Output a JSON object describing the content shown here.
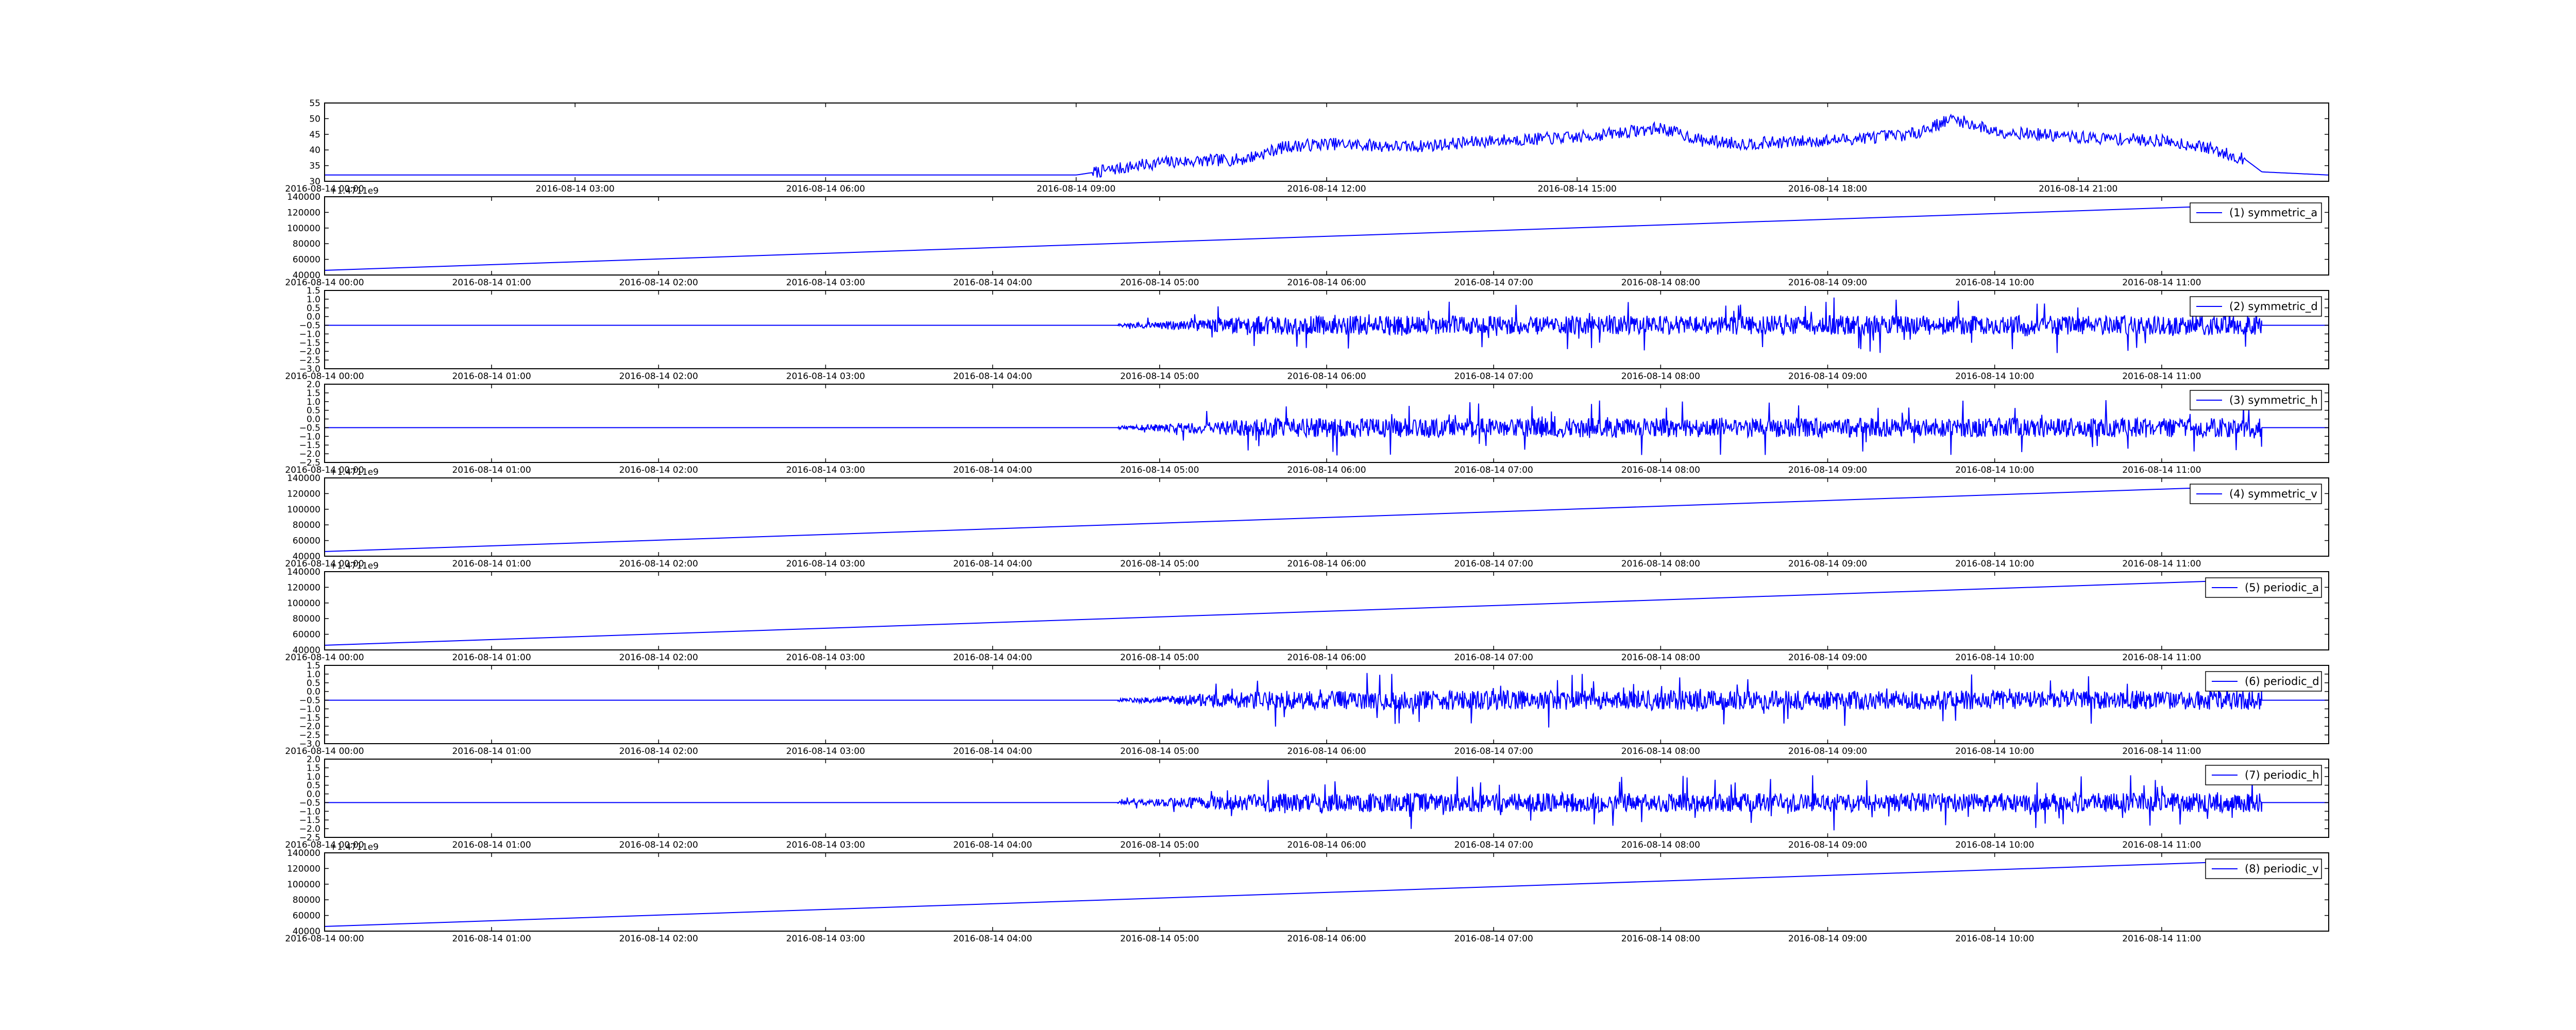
{
  "figure": {
    "background": "#ffffff",
    "line_color": "#0000ff",
    "frame_color": "#000000"
  },
  "chart_data": [
    {
      "type": "line",
      "panel_id": "signal",
      "title": "",
      "legend": null,
      "offset_text": "",
      "ylim": [
        30,
        55
      ],
      "y_ticks": [
        "30",
        "35",
        "40",
        "45",
        "50",
        "55"
      ],
      "x_ticks": [
        "2016-08-14 00:00",
        "2016-08-14 03:00",
        "2016-08-14 06:00",
        "2016-08-14 09:00",
        "2016-08-14 12:00",
        "2016-08-14 15:00",
        "2016-08-14 18:00",
        "2016-08-14 21:00"
      ],
      "x_tick_hours": [
        0,
        3,
        6,
        9,
        12,
        15,
        18,
        21
      ],
      "xlim_hours": [
        0,
        24
      ],
      "x_hours": [
        0,
        9,
        9.5,
        10,
        11,
        11.5,
        12,
        13,
        14,
        15,
        16,
        16.5,
        17,
        18,
        19,
        19.5,
        20,
        21,
        22,
        22.5,
        23,
        23.2,
        24
      ],
      "y": [
        32,
        32,
        34,
        36,
        37,
        41,
        42,
        41,
        43,
        44,
        47,
        43,
        42,
        43,
        45,
        50,
        46,
        44,
        43,
        41,
        37,
        33,
        32
      ],
      "noise_amplitude": 2
    },
    {
      "type": "line",
      "panel_id": "symmetric_a",
      "legend": "(1) symmetric_a",
      "offset_text": "+1.4711e9",
      "ylim": [
        40000,
        140000
      ],
      "y_ticks": [
        "40000",
        "60000",
        "80000",
        "100000",
        "120000",
        "140000"
      ],
      "x_ticks": [
        "2016-08-14 00:00",
        "2016-08-14 01:00",
        "2016-08-14 02:00",
        "2016-08-14 03:00",
        "2016-08-14 04:00",
        "2016-08-14 05:00",
        "2016-08-14 06:00",
        "2016-08-14 07:00",
        "2016-08-14 08:00",
        "2016-08-14 09:00",
        "2016-08-14 10:00",
        "2016-08-14 11:00"
      ],
      "x_tick_hours": [
        0,
        1,
        2,
        3,
        4,
        5,
        6,
        7,
        8,
        9,
        10,
        11
      ],
      "xlim_hours": [
        0,
        12
      ],
      "x_hours": [
        0,
        11.6
      ],
      "y": [
        46000,
        130000
      ]
    },
    {
      "type": "line",
      "panel_id": "symmetric_d",
      "legend": "(2) symmetric_d",
      "offset_text": "",
      "ylim": [
        -3.0,
        1.5
      ],
      "y_ticks": [
        "−3.0",
        "−2.5",
        "−2.0",
        "−1.5",
        "−1.0",
        "−0.5",
        "0.0",
        "0.5",
        "1.0",
        "1.5"
      ],
      "x_ticks": [
        "2016-08-14 00:00",
        "2016-08-14 01:00",
        "2016-08-14 02:00",
        "2016-08-14 03:00",
        "2016-08-14 04:00",
        "2016-08-14 05:00",
        "2016-08-14 06:00",
        "2016-08-14 07:00",
        "2016-08-14 08:00",
        "2016-08-14 09:00",
        "2016-08-14 10:00",
        "2016-08-14 11:00"
      ],
      "x_tick_hours": [
        0,
        1,
        2,
        3,
        4,
        5,
        6,
        7,
        8,
        9,
        10,
        11
      ],
      "xlim_hours": [
        0,
        12
      ],
      "baseline": -0.5,
      "flat_until_hour": 4.75,
      "active_until_hour": 11.6,
      "amplitude": 1.0
    },
    {
      "type": "line",
      "panel_id": "symmetric_h",
      "legend": "(3) symmetric_h",
      "offset_text": "",
      "ylim": [
        -2.5,
        2.0
      ],
      "y_ticks": [
        "−2.5",
        "−2.0",
        "−1.5",
        "−1.0",
        "−0.5",
        "0.0",
        "0.5",
        "1.0",
        "1.5",
        "2.0"
      ],
      "x_ticks": [
        "2016-08-14 00:00",
        "2016-08-14 01:00",
        "2016-08-14 02:00",
        "2016-08-14 03:00",
        "2016-08-14 04:00",
        "2016-08-14 05:00",
        "2016-08-14 06:00",
        "2016-08-14 07:00",
        "2016-08-14 08:00",
        "2016-08-14 09:00",
        "2016-08-14 10:00",
        "2016-08-14 11:00"
      ],
      "x_tick_hours": [
        0,
        1,
        2,
        3,
        4,
        5,
        6,
        7,
        8,
        9,
        10,
        11
      ],
      "xlim_hours": [
        0,
        12
      ],
      "baseline": -0.5,
      "flat_until_hour": 4.75,
      "active_until_hour": 11.6,
      "amplitude": 1.0
    },
    {
      "type": "line",
      "panel_id": "symmetric_v",
      "legend": "(4) symmetric_v",
      "offset_text": "+1.4711e9",
      "ylim": [
        40000,
        140000
      ],
      "y_ticks": [
        "40000",
        "60000",
        "80000",
        "100000",
        "120000",
        "140000"
      ],
      "x_ticks": [
        "2016-08-14 00:00",
        "2016-08-14 01:00",
        "2016-08-14 02:00",
        "2016-08-14 03:00",
        "2016-08-14 04:00",
        "2016-08-14 05:00",
        "2016-08-14 06:00",
        "2016-08-14 07:00",
        "2016-08-14 08:00",
        "2016-08-14 09:00",
        "2016-08-14 10:00",
        "2016-08-14 11:00"
      ],
      "x_tick_hours": [
        0,
        1,
        2,
        3,
        4,
        5,
        6,
        7,
        8,
        9,
        10,
        11
      ],
      "xlim_hours": [
        0,
        12
      ],
      "x_hours": [
        0,
        11.6
      ],
      "y": [
        46000,
        130000
      ]
    },
    {
      "type": "line",
      "panel_id": "periodic_a",
      "legend": "(5) periodic_a",
      "offset_text": "+1.4711e9",
      "ylim": [
        40000,
        140000
      ],
      "y_ticks": [
        "40000",
        "60000",
        "80000",
        "100000",
        "120000",
        "140000"
      ],
      "x_ticks": [
        "2016-08-14 00:00",
        "2016-08-14 01:00",
        "2016-08-14 02:00",
        "2016-08-14 03:00",
        "2016-08-14 04:00",
        "2016-08-14 05:00",
        "2016-08-14 06:00",
        "2016-08-14 07:00",
        "2016-08-14 08:00",
        "2016-08-14 09:00",
        "2016-08-14 10:00",
        "2016-08-14 11:00"
      ],
      "x_tick_hours": [
        0,
        1,
        2,
        3,
        4,
        5,
        6,
        7,
        8,
        9,
        10,
        11
      ],
      "xlim_hours": [
        0,
        12
      ],
      "x_hours": [
        0,
        11.6
      ],
      "y": [
        46000,
        130000
      ]
    },
    {
      "type": "line",
      "panel_id": "periodic_d",
      "legend": "(6) periodic_d",
      "offset_text": "",
      "ylim": [
        -3.0,
        1.5
      ],
      "y_ticks": [
        "−3.0",
        "−2.5",
        "−2.0",
        "−1.5",
        "−1.0",
        "−0.5",
        "0.0",
        "0.5",
        "1.0",
        "1.5"
      ],
      "x_ticks": [
        "2016-08-14 00:00",
        "2016-08-14 01:00",
        "2016-08-14 02:00",
        "2016-08-14 03:00",
        "2016-08-14 04:00",
        "2016-08-14 05:00",
        "2016-08-14 06:00",
        "2016-08-14 07:00",
        "2016-08-14 08:00",
        "2016-08-14 09:00",
        "2016-08-14 10:00",
        "2016-08-14 11:00"
      ],
      "x_tick_hours": [
        0,
        1,
        2,
        3,
        4,
        5,
        6,
        7,
        8,
        9,
        10,
        11
      ],
      "xlim_hours": [
        0,
        12
      ],
      "baseline": -0.5,
      "flat_until_hour": 4.75,
      "active_until_hour": 11.6,
      "amplitude": 1.0
    },
    {
      "type": "line",
      "panel_id": "periodic_h",
      "legend": "(7) periodic_h",
      "offset_text": "",
      "ylim": [
        -2.5,
        2.0
      ],
      "y_ticks": [
        "−2.5",
        "−2.0",
        "−1.5",
        "−1.0",
        "−0.5",
        "0.0",
        "0.5",
        "1.0",
        "1.5",
        "2.0"
      ],
      "x_ticks": [
        "2016-08-14 00:00",
        "2016-08-14 01:00",
        "2016-08-14 02:00",
        "2016-08-14 03:00",
        "2016-08-14 04:00",
        "2016-08-14 05:00",
        "2016-08-14 06:00",
        "2016-08-14 07:00",
        "2016-08-14 08:00",
        "2016-08-14 09:00",
        "2016-08-14 10:00",
        "2016-08-14 11:00"
      ],
      "x_tick_hours": [
        0,
        1,
        2,
        3,
        4,
        5,
        6,
        7,
        8,
        9,
        10,
        11
      ],
      "xlim_hours": [
        0,
        12
      ],
      "baseline": -0.5,
      "flat_until_hour": 4.75,
      "active_until_hour": 11.6,
      "amplitude": 1.0
    },
    {
      "type": "line",
      "panel_id": "periodic_v",
      "legend": "(8) periodic_v",
      "offset_text": "+1.4711e9",
      "ylim": [
        40000,
        140000
      ],
      "y_ticks": [
        "40000",
        "60000",
        "80000",
        "100000",
        "120000",
        "140000"
      ],
      "x_ticks": [
        "2016-08-14 00:00",
        "2016-08-14 01:00",
        "2016-08-14 02:00",
        "2016-08-14 03:00",
        "2016-08-14 04:00",
        "2016-08-14 05:00",
        "2016-08-14 06:00",
        "2016-08-14 07:00",
        "2016-08-14 08:00",
        "2016-08-14 09:00",
        "2016-08-14 10:00",
        "2016-08-14 11:00"
      ],
      "x_tick_hours": [
        0,
        1,
        2,
        3,
        4,
        5,
        6,
        7,
        8,
        9,
        10,
        11
      ],
      "xlim_hours": [
        0,
        12
      ],
      "x_hours": [
        0,
        11.6
      ],
      "y": [
        46000,
        130000
      ]
    }
  ]
}
